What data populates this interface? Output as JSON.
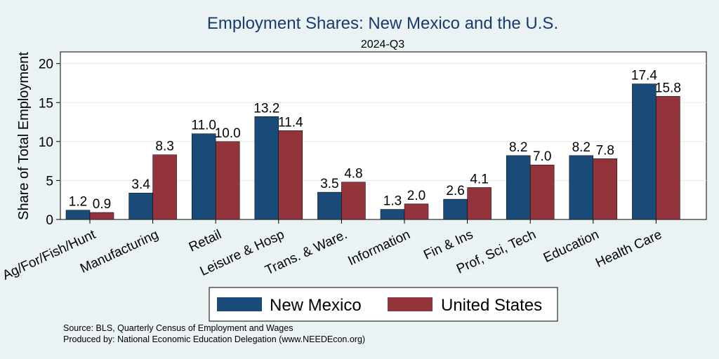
{
  "chart_data": {
    "type": "bar",
    "title": "Employment Shares: New Mexico and the U.S.",
    "subtitle": "2024-Q3",
    "ylabel": "Share of Total Employment",
    "xlabel": "",
    "ylim": [
      0,
      21.5
    ],
    "yticks": [
      0,
      5,
      10,
      15,
      20
    ],
    "grid": true,
    "legend_position": "bottom",
    "categories": [
      "Ag/For/Fish/Hunt",
      "Manufacturing",
      "Retail",
      "Leisure & Hosp",
      "Trans. & Ware.",
      "Information",
      "Fin & Ins",
      "Prof, Sci, Tech",
      "Education",
      "Health Care"
    ],
    "series": [
      {
        "name": "New Mexico",
        "color": "#1a4a78",
        "values": [
          1.2,
          3.4,
          11.0,
          13.2,
          3.5,
          1.3,
          2.6,
          8.2,
          8.2,
          17.4
        ],
        "labels": [
          "1.2",
          "3.4",
          "11.0",
          "13.2",
          "3.5",
          "1.3",
          "2.6",
          "8.2",
          "8.2",
          "17.4"
        ]
      },
      {
        "name": "United States",
        "color": "#93343c",
        "values": [
          0.9,
          8.3,
          10.0,
          11.4,
          4.8,
          2.0,
          4.1,
          7.0,
          7.8,
          15.8
        ],
        "labels": [
          "0.9",
          "8.3",
          "10.0",
          "11.4",
          "4.8",
          "2.0",
          "4.1",
          "7.0",
          "7.8",
          "15.8"
        ]
      }
    ]
  },
  "notes": {
    "source": "Source: BLS, Quarterly Census of Employment and Wages",
    "produced": "Produced by: National Economic Education Delegation (www.NEEDEcon.org)"
  }
}
